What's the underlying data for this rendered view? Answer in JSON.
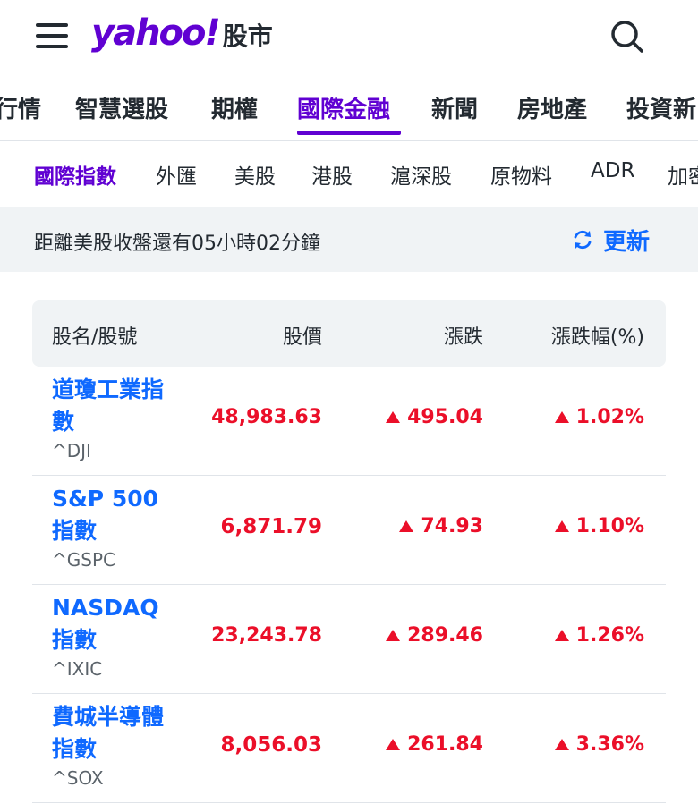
{
  "header": {
    "logo_text": "yahoo!",
    "logo_sub": "股市"
  },
  "main_tabs": [
    {
      "label": "行情"
    },
    {
      "label": "智慧選股"
    },
    {
      "label": "期權"
    },
    {
      "label": "國際金融"
    },
    {
      "label": "新聞"
    },
    {
      "label": "房地產"
    },
    {
      "label": "投資新"
    }
  ],
  "sub_tabs": [
    {
      "label": "國際指數"
    },
    {
      "label": "外匯"
    },
    {
      "label": "美股"
    },
    {
      "label": "港股"
    },
    {
      "label": "滬深股"
    },
    {
      "label": "原物料"
    },
    {
      "label": "ADR"
    },
    {
      "label": "加密"
    }
  ],
  "countdown": {
    "text": "距離美股收盤還有05小時02分鐘",
    "refresh_label": "更新"
  },
  "table": {
    "headers": {
      "name": "股名/股號",
      "price": "股價",
      "change": "漲跌",
      "pct": "漲跌幅(%)"
    },
    "rows": [
      {
        "name": "道瓊工業指數",
        "symbol": "^DJI",
        "price": "48,983.63",
        "change": "495.04",
        "pct": "1.02%"
      },
      {
        "name": "S&P 500指數",
        "symbol": "^GSPC",
        "price": "6,871.79",
        "change": "74.93",
        "pct": "1.10%"
      },
      {
        "name": "NASDAQ指數",
        "symbol": "^IXIC",
        "price": "23,243.78",
        "change": "289.46",
        "pct": "1.26%"
      },
      {
        "name": "費城半導體指數",
        "symbol": "^SOX",
        "price": "8,056.03",
        "change": "261.84",
        "pct": "3.36%"
      }
    ]
  },
  "colors": {
    "brand": "#6001d2",
    "link": "#0f69ff",
    "up": "#eb0f29"
  }
}
